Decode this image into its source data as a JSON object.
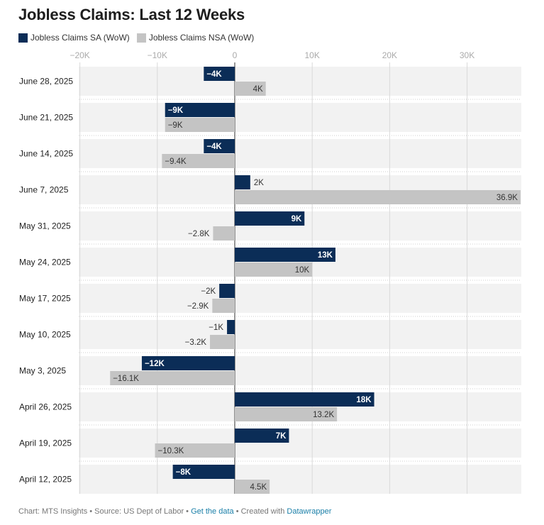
{
  "title": "Jobless Claims: Last 12 Weeks",
  "footer": {
    "prefix": "Chart: MTS Insights • Source: US Dept of Labor • ",
    "data_link": "Get the data",
    "middle": " • Created with ",
    "tool_link": "Datawrapper"
  },
  "colors": {
    "sa": "#0b2d57",
    "nsa": "#c4c4c4",
    "row_bg": "#f2f2f2",
    "grid": "#d9d9d9"
  },
  "chart_data": {
    "type": "bar",
    "orientation": "horizontal",
    "title": "Jobless Claims: Last 12 Weeks",
    "legend_position": "top-left",
    "grid": true,
    "xlim": [
      -20000,
      37000
    ],
    "x_ticks": [
      -20000,
      -10000,
      0,
      10000,
      20000,
      30000
    ],
    "x_tick_labels": [
      "−20K",
      "−10K",
      "0",
      "10K",
      "20K",
      "30K"
    ],
    "categories": [
      "June 28, 2025",
      "June 21, 2025",
      "June 14, 2025",
      "June 7, 2025",
      "May 31, 2025",
      "May 24, 2025",
      "May 17, 2025",
      "May 10, 2025",
      "May 3, 2025",
      "April 26, 2025",
      "April 19, 2025",
      "April 12, 2025"
    ],
    "series": [
      {
        "name": "Jobless Claims SA (WoW)",
        "color": "#0b2d57",
        "values": [
          -4000,
          -9000,
          -4000,
          2000,
          9000,
          13000,
          -2000,
          -1000,
          -12000,
          18000,
          7000,
          -8000
        ],
        "labels": [
          "−4K",
          "−9K",
          "−4K",
          "2K",
          "9K",
          "13K",
          "−2K",
          "−1K",
          "−12K",
          "18K",
          "7K",
          "−8K"
        ]
      },
      {
        "name": "Jobless Claims NSA (WoW)",
        "color": "#c4c4c4",
        "values": [
          4000,
          -9000,
          -9400,
          36900,
          -2800,
          10000,
          -2900,
          -3200,
          -16100,
          13200,
          -10300,
          4500
        ],
        "labels": [
          "4K",
          "−9K",
          "−9.4K",
          "36.9K",
          "−2.8K",
          "10K",
          "−2.9K",
          "−3.2K",
          "−16.1K",
          "13.2K",
          "−10.3K",
          "4.5K"
        ]
      }
    ]
  }
}
